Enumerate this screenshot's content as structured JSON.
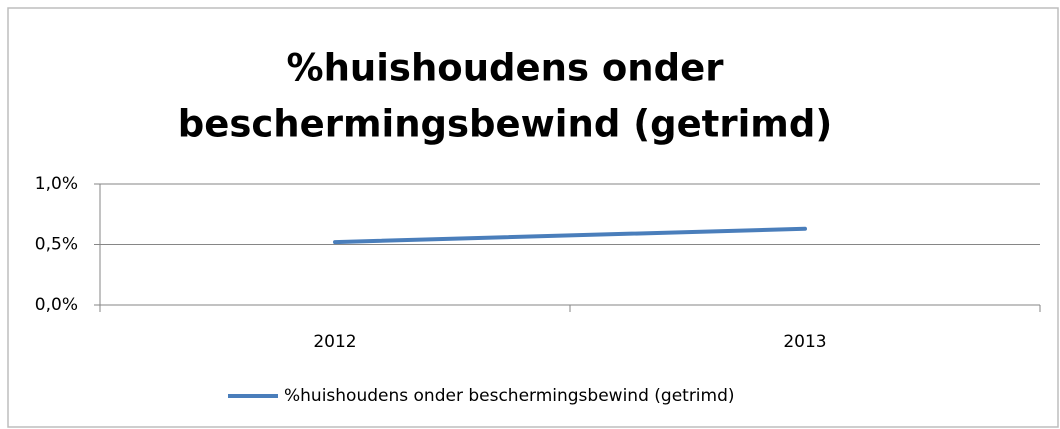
{
  "chart_data": {
    "type": "line",
    "title": [
      "%huishoudens onder",
      "beschermingsbewind (getrimd)"
    ],
    "categories": [
      "2012",
      "2013"
    ],
    "series": [
      {
        "name": "%huishoudens onder beschermingsbewind (getrimd)",
        "color": "#4a7ebb",
        "values": [
          0.52,
          0.63
        ]
      }
    ],
    "ylim": [
      0,
      1.0
    ],
    "yticks": [
      {
        "value": 0,
        "label": "0,0%"
      },
      {
        "value": 0.5,
        "label": "0,5%"
      },
      {
        "value": 1.0,
        "label": "1,0%"
      }
    ],
    "grid": true,
    "legend": "bottom"
  }
}
